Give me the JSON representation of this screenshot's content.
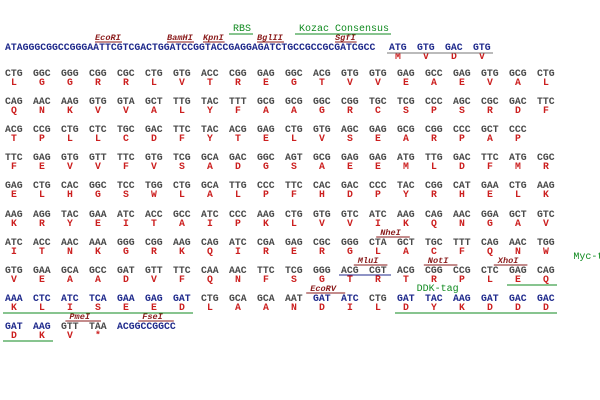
{
  "colors": {
    "dna_blue": "#1f2a8c",
    "codon_gray": "#4a4a4a",
    "aa_red": "#cc1f1f",
    "enzyme_red": "#8a1a1a",
    "feature_green": "#0f8a1f",
    "line_gray": "#777777"
  },
  "prefix": {
    "sequence": "ATAGGGCGGCCGGGAATTCGTCGACTGGATCCGGTACCGAGGAGATCTGCCGCCGCGATCGCC",
    "codons": [
      {
        "dna": "ATG",
        "aa": "M"
      },
      {
        "dna": "GTG",
        "aa": "V"
      },
      {
        "dna": "GAC",
        "aa": "D"
      },
      {
        "dna": "GTG",
        "aa": "V"
      }
    ],
    "enzymes": [
      {
        "label": "EcoRI",
        "col": 15
      },
      {
        "label": "BamHI",
        "col": 27
      },
      {
        "label": "KpnI",
        "col": 33
      },
      {
        "label": "BglII",
        "col": 42
      },
      {
        "label": "SgfI",
        "col": 55
      }
    ],
    "features": [
      {
        "label": "RBS",
        "col": 38
      },
      {
        "label": "Kozac Consensus",
        "col": 49
      }
    ]
  },
  "rows": [
    {
      "codons": [
        "CTG",
        "GGC",
        "GGG",
        "CGG",
        "CGC",
        "CTG",
        "GTG",
        "ACC",
        "CGG",
        "GAG",
        "GGC",
        "ACG",
        "GTG",
        "GTG",
        "GAG",
        "GCC",
        "GAG",
        "GTG",
        "GCG",
        "CTG"
      ],
      "aas": [
        "L",
        "G",
        "G",
        "R",
        "R",
        "L",
        "V",
        "T",
        "R",
        "E",
        "G",
        "T",
        "V",
        "V",
        "E",
        "A",
        "E",
        "V",
        "A",
        "L"
      ]
    },
    {
      "codons": [
        "CAG",
        "AAC",
        "AAG",
        "GTG",
        "GTA",
        "GCT",
        "TTG",
        "TAC",
        "TTT",
        "GCG",
        "GCG",
        "GGC",
        "CGG",
        "TGC",
        "TCG",
        "CCC",
        "AGC",
        "CGC",
        "GAC",
        "TTC"
      ],
      "aas": [
        "Q",
        "N",
        "K",
        "V",
        "V",
        "A",
        "L",
        "Y",
        "F",
        "A",
        "A",
        "G",
        "R",
        "C",
        "S",
        "P",
        "S",
        "R",
        "D",
        "F"
      ]
    },
    {
      "codons": [
        "ACG",
        "CCG",
        "CTG",
        "CTC",
        "TGC",
        "GAC",
        "TTC",
        "TAC",
        "ACG",
        "GAG",
        "CTG",
        "GTG",
        "AGC",
        "GAG",
        "GCG",
        "CGG",
        "CCC",
        "GCT",
        "CCC"
      ],
      "aas": [
        "T",
        "P",
        "L",
        "L",
        "C",
        "D",
        "F",
        "Y",
        "T",
        "E",
        "L",
        "V",
        "S",
        "E",
        "A",
        "R",
        "P",
        "A",
        "P"
      ]
    },
    {
      "codons": [
        "TTC",
        "GAG",
        "GTG",
        "GTT",
        "TTC",
        "GTG",
        "TCG",
        "GCA",
        "GAC",
        "GGC",
        "AGT",
        "GCG",
        "GAG",
        "GAG",
        "ATG",
        "TTG",
        "GAC",
        "TTC",
        "ATG",
        "CGC"
      ],
      "aas": [
        "F",
        "E",
        "V",
        "V",
        "F",
        "V",
        "S",
        "A",
        "D",
        "G",
        "S",
        "A",
        "E",
        "E",
        "M",
        "L",
        "D",
        "F",
        "M",
        "R"
      ]
    },
    {
      "codons": [
        "GAG",
        "CTG",
        "CAC",
        "GGC",
        "TCC",
        "TGG",
        "CTG",
        "GCA",
        "TTG",
        "CCC",
        "TTC",
        "CAC",
        "GAC",
        "CCC",
        "TAC",
        "CGG",
        "CAT",
        "GAA",
        "CTG",
        "AAG"
      ],
      "aas": [
        "E",
        "L",
        "H",
        "G",
        "S",
        "W",
        "L",
        "A",
        "L",
        "P",
        "F",
        "H",
        "D",
        "P",
        "Y",
        "R",
        "H",
        "E",
        "L",
        "K"
      ]
    },
    {
      "codons": [
        "AAG",
        "AGG",
        "TAC",
        "GAA",
        "ATC",
        "ACC",
        "GCC",
        "ATC",
        "CCC",
        "AAG",
        "CTG",
        "GTG",
        "GTC",
        "ATC",
        "AAG",
        "CAG",
        "AAC",
        "GGA",
        "GCT",
        "GTC"
      ],
      "aas": [
        "K",
        "R",
        "Y",
        "E",
        "I",
        "T",
        "A",
        "I",
        "P",
        "K",
        "L",
        "V",
        "V",
        "I",
        "K",
        "Q",
        "N",
        "G",
        "A",
        "V"
      ]
    },
    {
      "codons": [
        "ATC",
        "ACC",
        "AAC",
        "AAA",
        "GGG",
        "CGG",
        "AAG",
        "CAG",
        "ATC",
        "CGA",
        "GAG",
        "CGC",
        "GGG",
        "CTA",
        "GCT",
        "TGC",
        "TTT",
        "CAG",
        "AAC",
        "TGG"
      ],
      "aas": [
        "I",
        "T",
        "N",
        "K",
        "G",
        "R",
        "K",
        "Q",
        "I",
        "R",
        "E",
        "R",
        "G",
        "L",
        "A",
        "C",
        "F",
        "Q",
        "N",
        "W"
      ],
      "enzymes": [
        {
          "label": "NheI",
          "col": 13.4
        }
      ]
    },
    {
      "codons": [
        "GTG",
        "GAA",
        "GCA",
        "GCC",
        "GAT",
        "GTT",
        "TTC",
        "CAA",
        "AAC",
        "TTC",
        "TCG",
        "GGG",
        "ACG",
        "CGT",
        "ACG",
        "CGG",
        "CCG",
        "CTC",
        "GAG",
        "CAG"
      ],
      "aas": [
        "V",
        "E",
        "A",
        "A",
        "D",
        "V",
        "F",
        "Q",
        "N",
        "F",
        "S",
        "G",
        "T",
        "R",
        "T",
        "R",
        "P",
        "L",
        "E",
        "Q"
      ],
      "enzymes": [
        {
          "label": "MluI",
          "col": 12.6
        },
        {
          "label": "NotI",
          "col": 15.1
        },
        {
          "label": "XhoI",
          "col": 17.6
        }
      ],
      "features": [
        {
          "label": "Myc-tag",
          "col": 20.3,
          "dy": -4
        }
      ],
      "underline": {
        "start": 12,
        "end": 14
      },
      "aa_line": {
        "start": 18,
        "end": 20
      }
    },
    {
      "codons": [
        "AAA",
        "CTC",
        "ATC",
        "TCA",
        "GAA",
        "GAG",
        "GAT",
        "CTG",
        "GCA",
        "GCA",
        "AAT",
        "GAT",
        "ATC",
        "CTG",
        "GAT",
        "TAC",
        "AAG",
        "GAT",
        "GAC",
        "GAC"
      ],
      "aas": [
        "K",
        "L",
        "I",
        "S",
        "E",
        "E",
        "D",
        "L",
        "A",
        "A",
        "N",
        "D",
        "I",
        "L",
        "D",
        "Y",
        "K",
        "D",
        "D",
        "D"
      ],
      "dna_blue": [
        true,
        true,
        true,
        true,
        true,
        true,
        true,
        false,
        false,
        false,
        false,
        true,
        true,
        false,
        true,
        true,
        true,
        true,
        true,
        true
      ],
      "enzymes": [
        {
          "label": "EcoRV",
          "col": 10.9
        }
      ],
      "features": [
        {
          "label": "DDK-tag",
          "col": 14.7
        }
      ],
      "aa_line": {
        "start": 0,
        "end": 7
      },
      "aa_line2": {
        "start": 14,
        "end": 20
      }
    }
  ],
  "final": {
    "codons": [
      {
        "dna": "GAT",
        "aa": "D",
        "blue": true
      },
      {
        "dna": "AAG",
        "aa": "K",
        "blue": true
      },
      {
        "dna": "GTT",
        "aa": "V",
        "blue": false
      },
      {
        "dna": "TAA",
        "aa": "*",
        "blue": false
      }
    ],
    "tail": "ACGGCCGGCC",
    "enzymes": [
      {
        "label": "PmeI",
        "col": 2.3
      },
      {
        "label": "FseI",
        "col": 4.9
      }
    ]
  }
}
